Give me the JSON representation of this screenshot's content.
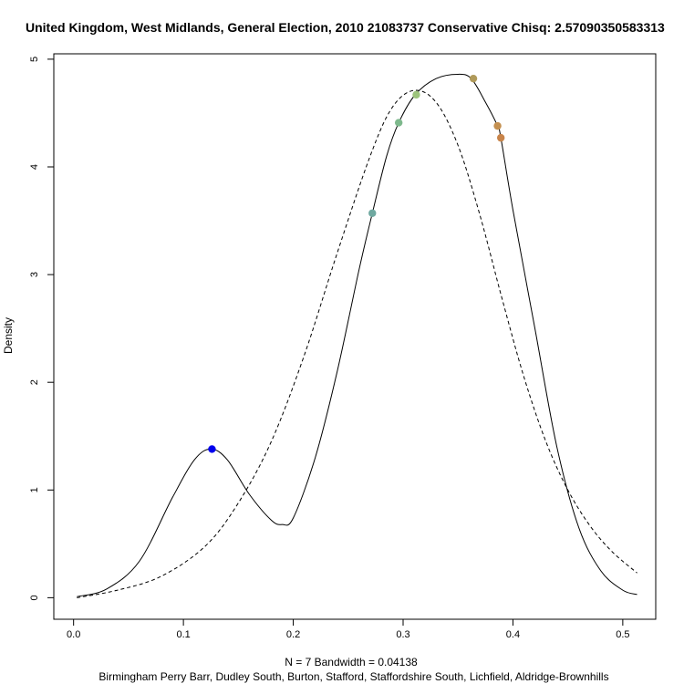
{
  "chart_data": {
    "type": "line",
    "title": "United Kingdom, West Midlands, General Election, 2010 21083737 Conservative Chisq: 2.57090350583313",
    "xlabel": "N = 7   Bandwidth = 0.04138",
    "subtitle": "Birmingham Perry Barr, Dudley South, Burton, Stafford, Staffordshire South, Lichfield, Aldridge-Brownhills",
    "ylabel": "Density",
    "xlim": [
      -0.018,
      0.53
    ],
    "ylim": [
      -0.2,
      5.05
    ],
    "x_ticks": [
      0.0,
      0.1,
      0.2,
      0.3,
      0.4,
      0.5
    ],
    "x_tick_labels": [
      "0.0",
      "0.1",
      "0.2",
      "0.3",
      "0.4",
      "0.5"
    ],
    "y_ticks": [
      0,
      1,
      2,
      3,
      4,
      5
    ],
    "y_tick_labels": [
      "0",
      "1",
      "2",
      "3",
      "4",
      "5"
    ],
    "grid": false,
    "series": [
      {
        "style": "solid",
        "color": "#000000",
        "x": [
          0.003,
          0.03,
          0.06,
          0.09,
          0.11,
          0.125,
          0.14,
          0.16,
          0.18,
          0.19,
          0.2,
          0.22,
          0.24,
          0.26,
          0.272,
          0.285,
          0.296,
          0.311,
          0.33,
          0.35,
          0.362,
          0.375,
          0.386,
          0.389,
          0.4,
          0.42,
          0.44,
          0.46,
          0.48,
          0.5,
          0.513
        ],
        "y": [
          0.01,
          0.08,
          0.34,
          0.93,
          1.28,
          1.38,
          1.28,
          0.96,
          0.72,
          0.68,
          0.74,
          1.3,
          2.1,
          3.05,
          3.57,
          4.1,
          4.41,
          4.67,
          4.82,
          4.86,
          4.82,
          4.6,
          4.38,
          4.27,
          3.6,
          2.5,
          1.4,
          0.65,
          0.25,
          0.07,
          0.03
        ]
      },
      {
        "style": "dashed",
        "color": "#000000",
        "x": [
          0.003,
          0.04,
          0.08,
          0.12,
          0.15,
          0.18,
          0.21,
          0.24,
          0.27,
          0.29,
          0.31,
          0.33,
          0.35,
          0.37,
          0.39,
          0.41,
          0.43,
          0.45,
          0.47,
          0.49,
          0.513
        ],
        "y": [
          0.0,
          0.07,
          0.2,
          0.48,
          0.88,
          1.45,
          2.25,
          3.2,
          4.1,
          4.55,
          4.71,
          4.6,
          4.2,
          3.55,
          2.78,
          2.05,
          1.45,
          1.0,
          0.67,
          0.43,
          0.23
        ]
      }
    ],
    "points": [
      {
        "x": 0.126,
        "y": 1.38,
        "color": "#0000ee"
      },
      {
        "x": 0.272,
        "y": 3.57,
        "color": "#6fa8a0"
      },
      {
        "x": 0.296,
        "y": 4.41,
        "color": "#7db88c"
      },
      {
        "x": 0.312,
        "y": 4.67,
        "color": "#9dc47c"
      },
      {
        "x": 0.364,
        "y": 4.82,
        "color": "#b09a5a"
      },
      {
        "x": 0.386,
        "y": 4.38,
        "color": "#c49050"
      },
      {
        "x": 0.389,
        "y": 4.27,
        "color": "#c8844a"
      }
    ]
  }
}
